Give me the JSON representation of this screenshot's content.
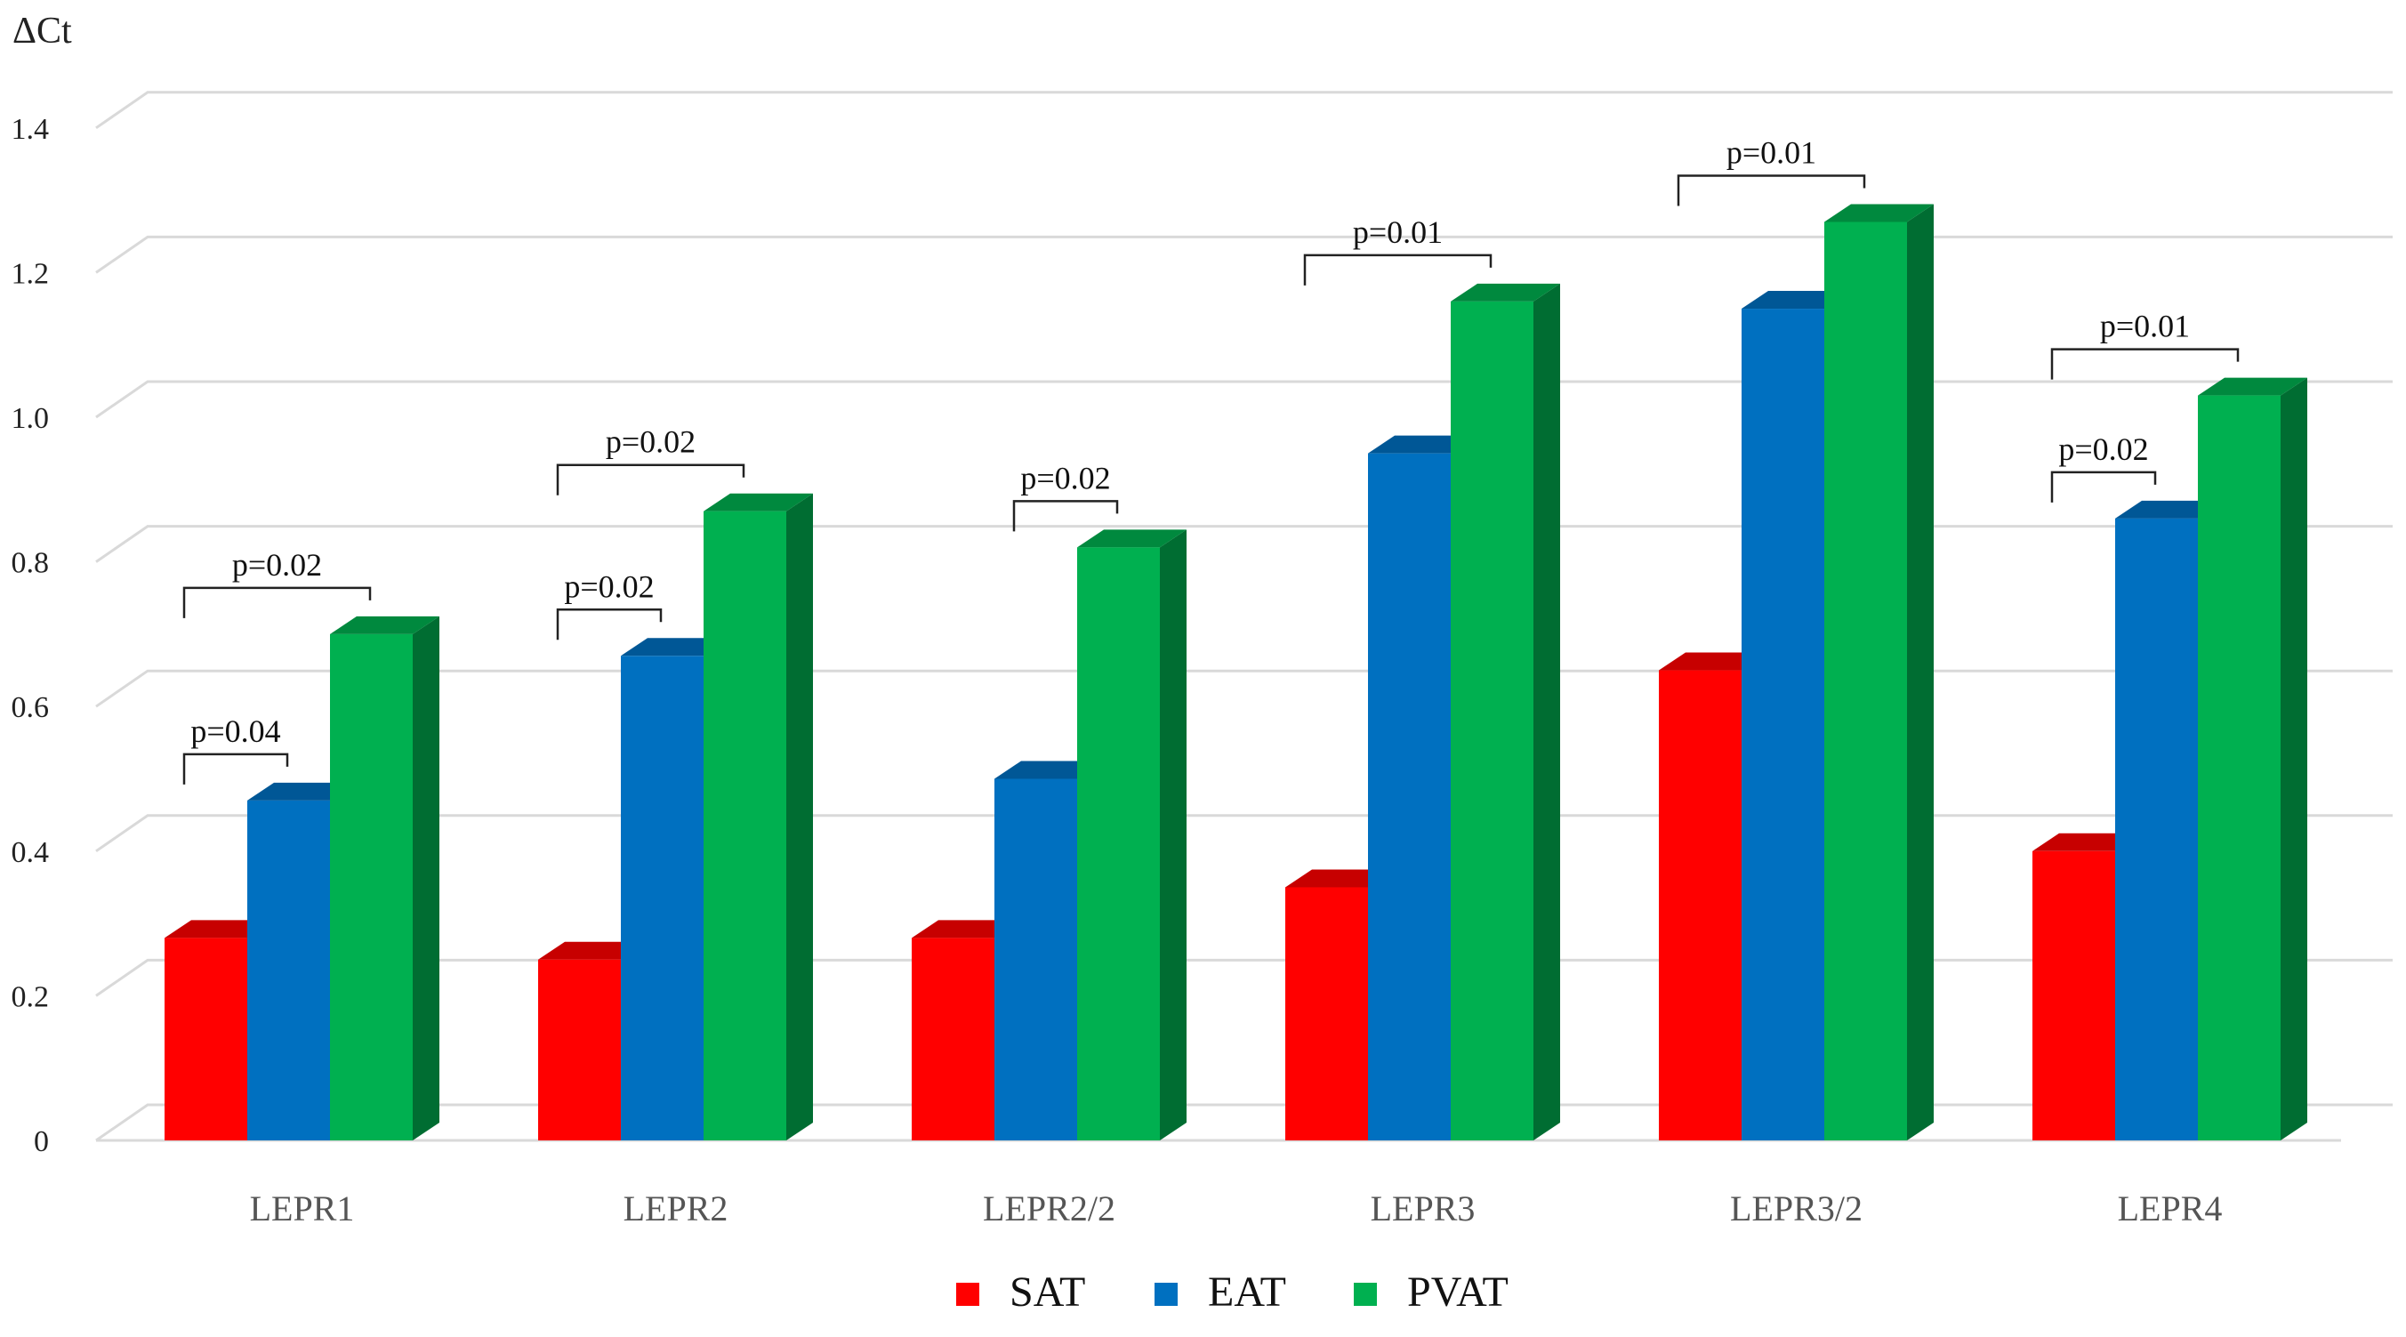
{
  "chart_data": {
    "type": "bar",
    "style": "3d-clustered-column",
    "ylabel": "ΔCt",
    "ylim": [
      0,
      1.4
    ],
    "yticks": [
      "0",
      "0.2",
      "0.4",
      "0.6",
      "0.8",
      "1.0",
      "1.2",
      "1.4"
    ],
    "categories": [
      "LEPR1",
      "LEPR2",
      "LEPR2/2",
      "LEPR3",
      "LEPR3/2",
      "LEPR4"
    ],
    "series": [
      {
        "name": "SAT",
        "color": "#ff0000",
        "values": [
          0.28,
          0.25,
          0.28,
          0.35,
          0.65,
          0.4
        ]
      },
      {
        "name": "EAT",
        "color": "#0070c0",
        "values": [
          0.47,
          0.67,
          0.5,
          0.95,
          1.15,
          0.86
        ]
      },
      {
        "name": "PVAT",
        "color": "#00b050",
        "values": [
          0.7,
          0.87,
          0.82,
          1.16,
          1.27,
          1.03
        ]
      }
    ],
    "annotations": [
      {
        "category": 0,
        "from": "SAT",
        "to": "PVAT",
        "label": "p=0.02"
      },
      {
        "category": 0,
        "from": "SAT",
        "to": "EAT",
        "label": "p=0.04"
      },
      {
        "category": 1,
        "from": "SAT",
        "to": "PVAT",
        "label": "p=0.02"
      },
      {
        "category": 1,
        "from": "SAT",
        "to": "EAT",
        "label": "p=0.02"
      },
      {
        "category": 2,
        "from": "EAT",
        "to": "PVAT",
        "label": "p=0.02"
      },
      {
        "category": 3,
        "from": "SAT",
        "to": "PVAT",
        "label": "p=0.01"
      },
      {
        "category": 4,
        "from": "SAT",
        "to": "PVAT",
        "label": "p=0.01"
      },
      {
        "category": 5,
        "from": "SAT",
        "to": "PVAT",
        "label": "p=0.01"
      },
      {
        "category": 5,
        "from": "SAT",
        "to": "EAT",
        "label": "p=0.02"
      }
    ],
    "legend": {
      "position": "bottom-center",
      "entries": [
        "SAT",
        "EAT",
        "PVAT"
      ]
    },
    "grid": true
  }
}
